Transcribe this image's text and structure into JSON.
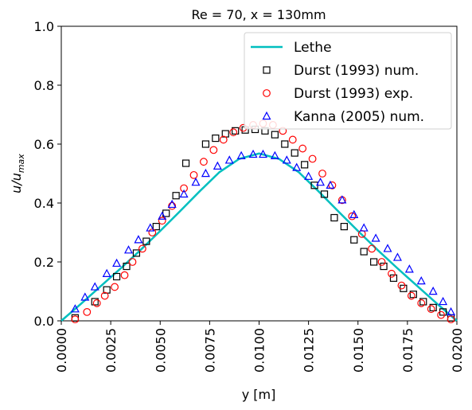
{
  "chart_data": {
    "type": "line",
    "title": "Re = 70, x = 130mm",
    "xlabel": "y [m]",
    "ylabel_main": "u/u",
    "ylabel_sub": "max",
    "xlim": [
      0.0,
      0.02
    ],
    "ylim": [
      0.0,
      1.0
    ],
    "grid": false,
    "legend_placement": "top-right",
    "xticks": [
      "0.0000",
      "0.0025",
      "0.0050",
      "0.0075",
      "0.0100",
      "0.0125",
      "0.0150",
      "0.0175",
      "0.0200"
    ],
    "yticks": [
      "0.0",
      "0.2",
      "0.4",
      "0.6",
      "0.8",
      "1.0"
    ],
    "series": [
      {
        "name": "Lethe",
        "style": "line",
        "color": "#00bfbf",
        "x": [
          0.0,
          0.001,
          0.002,
          0.003,
          0.004,
          0.005,
          0.006,
          0.007,
          0.008,
          0.009,
          0.01,
          0.011,
          0.012,
          0.013,
          0.014,
          0.015,
          0.016,
          0.017,
          0.018,
          0.019,
          0.02
        ],
        "y": [
          0.0,
          0.058,
          0.118,
          0.178,
          0.24,
          0.305,
          0.372,
          0.44,
          0.505,
          0.55,
          0.568,
          0.55,
          0.505,
          0.44,
          0.372,
          0.305,
          0.24,
          0.178,
          0.118,
          0.058,
          0.0
        ]
      },
      {
        "name": "Durst (1993) num.",
        "style": "square",
        "color": "#000000",
        "x": [
          0.0007,
          0.0017,
          0.0023,
          0.0028,
          0.0033,
          0.0038,
          0.0043,
          0.0048,
          0.0053,
          0.0058,
          0.0063,
          0.0073,
          0.0078,
          0.0083,
          0.0088,
          0.0093,
          0.0098,
          0.0103,
          0.0108,
          0.0113,
          0.0118,
          0.0123,
          0.0128,
          0.0133,
          0.0138,
          0.0143,
          0.0148,
          0.0153,
          0.0158,
          0.0163,
          0.0168,
          0.0173,
          0.0178,
          0.0183,
          0.0188,
          0.0193,
          0.0197
        ],
        "y": [
          0.01,
          0.065,
          0.105,
          0.15,
          0.185,
          0.23,
          0.27,
          0.32,
          0.365,
          0.425,
          0.535,
          0.6,
          0.62,
          0.635,
          0.645,
          0.648,
          0.65,
          0.645,
          0.632,
          0.6,
          0.57,
          0.53,
          0.46,
          0.43,
          0.35,
          0.32,
          0.275,
          0.235,
          0.2,
          0.185,
          0.145,
          0.11,
          0.09,
          0.065,
          0.045,
          0.03,
          0.01
        ]
      },
      {
        "name": "Durst (1993) exp.",
        "style": "circle",
        "color": "#ff0000",
        "x": [
          0.0007,
          0.0013,
          0.0018,
          0.0022,
          0.0027,
          0.0032,
          0.0036,
          0.0041,
          0.0046,
          0.0051,
          0.0056,
          0.0062,
          0.0067,
          0.0072,
          0.0077,
          0.0082,
          0.0087,
          0.0092,
          0.0097,
          0.0102,
          0.0107,
          0.0112,
          0.0117,
          0.0122,
          0.0127,
          0.0132,
          0.0137,
          0.0142,
          0.0147,
          0.0152,
          0.0157,
          0.0162,
          0.0167,
          0.0172,
          0.0177,
          0.0182,
          0.0187,
          0.0192,
          0.0197
        ],
        "y": [
          0.005,
          0.03,
          0.06,
          0.085,
          0.115,
          0.155,
          0.2,
          0.245,
          0.3,
          0.34,
          0.39,
          0.45,
          0.495,
          0.54,
          0.58,
          0.615,
          0.64,
          0.655,
          0.665,
          0.67,
          0.665,
          0.645,
          0.615,
          0.585,
          0.55,
          0.5,
          0.46,
          0.41,
          0.355,
          0.295,
          0.245,
          0.2,
          0.16,
          0.12,
          0.085,
          0.06,
          0.04,
          0.02,
          0.005
        ]
      },
      {
        "name": "Kanna (2005) num.",
        "style": "triangle",
        "color": "#0000ff",
        "x": [
          0.0007,
          0.0012,
          0.0017,
          0.0023,
          0.0028,
          0.0034,
          0.0039,
          0.0045,
          0.0051,
          0.0056,
          0.0062,
          0.0068,
          0.0073,
          0.0079,
          0.0085,
          0.0091,
          0.0097,
          0.0102,
          0.0108,
          0.0114,
          0.0119,
          0.0125,
          0.0131,
          0.0136,
          0.0142,
          0.0148,
          0.0153,
          0.0159,
          0.0165,
          0.017,
          0.0176,
          0.0182,
          0.0188,
          0.0193,
          0.0197
        ],
        "y": [
          0.04,
          0.08,
          0.115,
          0.16,
          0.195,
          0.24,
          0.275,
          0.315,
          0.355,
          0.395,
          0.43,
          0.47,
          0.5,
          0.525,
          0.545,
          0.56,
          0.565,
          0.565,
          0.56,
          0.545,
          0.52,
          0.49,
          0.47,
          0.46,
          0.41,
          0.36,
          0.315,
          0.28,
          0.245,
          0.215,
          0.175,
          0.135,
          0.1,
          0.065,
          0.03
        ]
      }
    ]
  }
}
